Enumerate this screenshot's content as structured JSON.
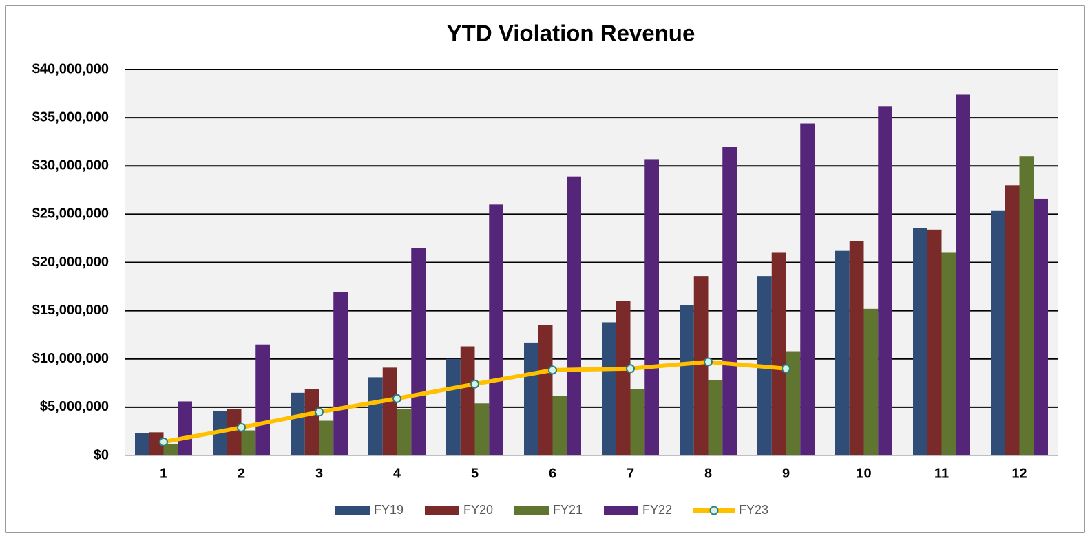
{
  "chart_data": {
    "type": "bar",
    "title": "YTD Violation Revenue",
    "categories": [
      "1",
      "2",
      "3",
      "4",
      "5",
      "6",
      "7",
      "8",
      "9",
      "10",
      "11",
      "12"
    ],
    "series": [
      {
        "name": "FY19",
        "type": "bar",
        "color": "#2f4d77",
        "values": [
          2350000,
          4600000,
          6500000,
          8100000,
          10000000,
          11700000,
          13800000,
          15600000,
          18600000,
          21200000,
          23600000,
          25400000
        ]
      },
      {
        "name": "FY20",
        "type": "bar",
        "color": "#7b2a2a",
        "values": [
          2400000,
          4800000,
          6850000,
          9100000,
          11300000,
          13500000,
          16000000,
          18600000,
          21000000,
          22200000,
          23400000,
          28000000
        ]
      },
      {
        "name": "FY21",
        "type": "bar",
        "color": "#60752f",
        "values": [
          1200000,
          2600000,
          3600000,
          4800000,
          5400000,
          6200000,
          6900000,
          7800000,
          10800000,
          15200000,
          21000000,
          31000000
        ]
      },
      {
        "name": "FY22",
        "type": "bar",
        "color": "#552579",
        "values": [
          5600000,
          11500000,
          16900000,
          21500000,
          26000000,
          28900000,
          30700000,
          32000000,
          34400000,
          36200000,
          37400000,
          26600000
        ]
      },
      {
        "name": "FY23",
        "type": "line",
        "color": "#ffc000",
        "marker_color": "#d7f1e4",
        "values": [
          1400000,
          2900000,
          4500000,
          5900000,
          7400000,
          8850000,
          9000000,
          9700000,
          9000000,
          null,
          null,
          null
        ]
      }
    ],
    "ylim": [
      0,
      40000000
    ],
    "yticks": [
      {
        "value": 0,
        "label": "$0"
      },
      {
        "value": 5000000,
        "label": "$5,000,000"
      },
      {
        "value": 10000000,
        "label": "$10,000,000"
      },
      {
        "value": 15000000,
        "label": "$15,000,000"
      },
      {
        "value": 20000000,
        "label": "$20,000,000"
      },
      {
        "value": 25000000,
        "label": "$25,000,000"
      },
      {
        "value": 30000000,
        "label": "$30,000,000"
      },
      {
        "value": 35000000,
        "label": "$35,000,000"
      },
      {
        "value": 40000000,
        "label": "$40,000,000"
      }
    ],
    "grid": true,
    "legend": "bottom"
  }
}
